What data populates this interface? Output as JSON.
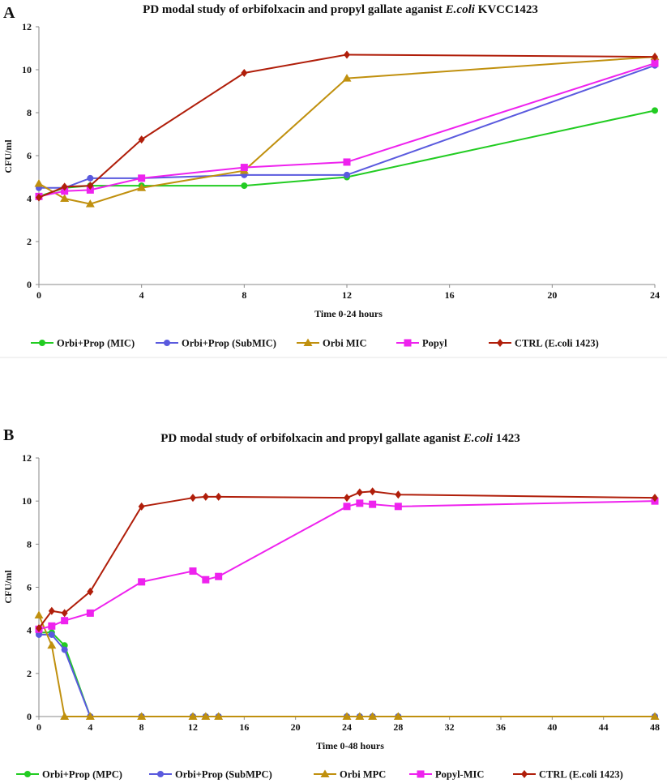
{
  "chart_data": [
    {
      "panel": "A",
      "type": "line",
      "title_prefix": "PD modal study of orbifolxacin and propyl gallate aganist ",
      "title_italic": "E.coli",
      "title_suffix": " KVCC1423",
      "xlabel": "Time 0-24 hours",
      "ylabel": "CFU/ml",
      "xlim": [
        0,
        24
      ],
      "ylim": [
        0,
        12
      ],
      "xticks": [
        0,
        4,
        8,
        12,
        16,
        20,
        24
      ],
      "yticks": [
        0,
        2,
        4,
        6,
        8,
        10,
        12
      ],
      "series": [
        {
          "name": "Orbi+Prop (MIC)",
          "color": "#22cc22",
          "marker": "circle",
          "x": [
            0,
            1,
            2,
            4,
            8,
            12,
            24
          ],
          "y": [
            4.1,
            4.5,
            4.6,
            4.6,
            4.6,
            5.0,
            8.1
          ]
        },
        {
          "name": "Orbi+Prop (SubMIC)",
          "color": "#5a5ade",
          "marker": "circle",
          "x": [
            0,
            1,
            2,
            4,
            8,
            12,
            24
          ],
          "y": [
            4.5,
            4.5,
            4.95,
            4.95,
            5.1,
            5.1,
            10.2
          ]
        },
        {
          "name": "Orbi MIC",
          "color": "#c0900e",
          "marker": "triangle",
          "x": [
            0,
            1,
            2,
            4,
            8,
            12,
            24
          ],
          "y": [
            4.7,
            4.0,
            3.75,
            4.5,
            5.3,
            9.6,
            10.6
          ]
        },
        {
          "name": "Popyl",
          "color": "#ee22ee",
          "marker": "square",
          "x": [
            0,
            1,
            2,
            4,
            8,
            12,
            24
          ],
          "y": [
            4.1,
            4.35,
            4.4,
            4.95,
            5.45,
            5.7,
            10.3
          ]
        },
        {
          "name": "CTRL (E.coli 1423)",
          "color": "#b01e0a",
          "marker": "diamond",
          "x": [
            0,
            1,
            2,
            4,
            8,
            12,
            24
          ],
          "y": [
            4.05,
            4.55,
            4.6,
            6.75,
            9.85,
            10.7,
            10.6
          ]
        }
      ]
    },
    {
      "panel": "B",
      "type": "line",
      "title_prefix": "PD modal study of orbifolxacin and propyl gallate aganist ",
      "title_italic": "E.coli",
      "title_suffix": " 1423",
      "xlabel": "Time 0-48 hours",
      "ylabel": "CFU/ml",
      "xlim": [
        0,
        48
      ],
      "ylim": [
        0,
        12
      ],
      "xticks": [
        0,
        4,
        8,
        12,
        16,
        20,
        24,
        28,
        32,
        36,
        40,
        44,
        48
      ],
      "yticks": [
        0,
        2,
        4,
        6,
        8,
        10,
        12
      ],
      "series": [
        {
          "name": "Orbi+Prop (MPC)",
          "color": "#22cc22",
          "marker": "circle",
          "x": [
            0,
            1,
            2,
            4,
            8,
            12,
            13,
            14,
            24,
            25,
            26,
            28,
            48
          ],
          "y": [
            3.9,
            3.9,
            3.3,
            0,
            0,
            0,
            0,
            0,
            0,
            0,
            0,
            0,
            0
          ]
        },
        {
          "name": "Orbi+Prop (SubMPC)",
          "color": "#5a5ade",
          "marker": "circle",
          "x": [
            0,
            1,
            2,
            4,
            8,
            12,
            13,
            14,
            24,
            25,
            26,
            28,
            48
          ],
          "y": [
            3.8,
            3.8,
            3.1,
            0,
            0,
            0,
            0,
            0,
            0,
            0,
            0,
            0,
            0
          ]
        },
        {
          "name": "Orbi MPC",
          "color": "#c0900e",
          "marker": "triangle",
          "x": [
            0,
            1,
            2,
            4,
            8,
            12,
            13,
            14,
            24,
            25,
            26,
            28,
            48
          ],
          "y": [
            4.7,
            3.3,
            0,
            0,
            0,
            0,
            0,
            0,
            0,
            0,
            0,
            0,
            0
          ]
        },
        {
          "name": "Popyl-MIC",
          "color": "#ee22ee",
          "marker": "square",
          "x": [
            0,
            1,
            2,
            4,
            8,
            12,
            13,
            14,
            24,
            25,
            26,
            28,
            48
          ],
          "y": [
            4.05,
            4.2,
            4.45,
            4.8,
            6.25,
            6.75,
            6.35,
            6.5,
            9.75,
            9.9,
            9.85,
            9.75,
            10.0
          ]
        },
        {
          "name": "CTRL (E.coli 1423)",
          "color": "#b01e0a",
          "marker": "diamond",
          "x": [
            0,
            1,
            2,
            4,
            8,
            12,
            13,
            14,
            24,
            25,
            26,
            28,
            48
          ],
          "y": [
            4.1,
            4.9,
            4.8,
            5.8,
            9.75,
            10.15,
            10.2,
            10.2,
            10.15,
            10.4,
            10.45,
            10.3,
            10.15
          ]
        }
      ]
    }
  ]
}
